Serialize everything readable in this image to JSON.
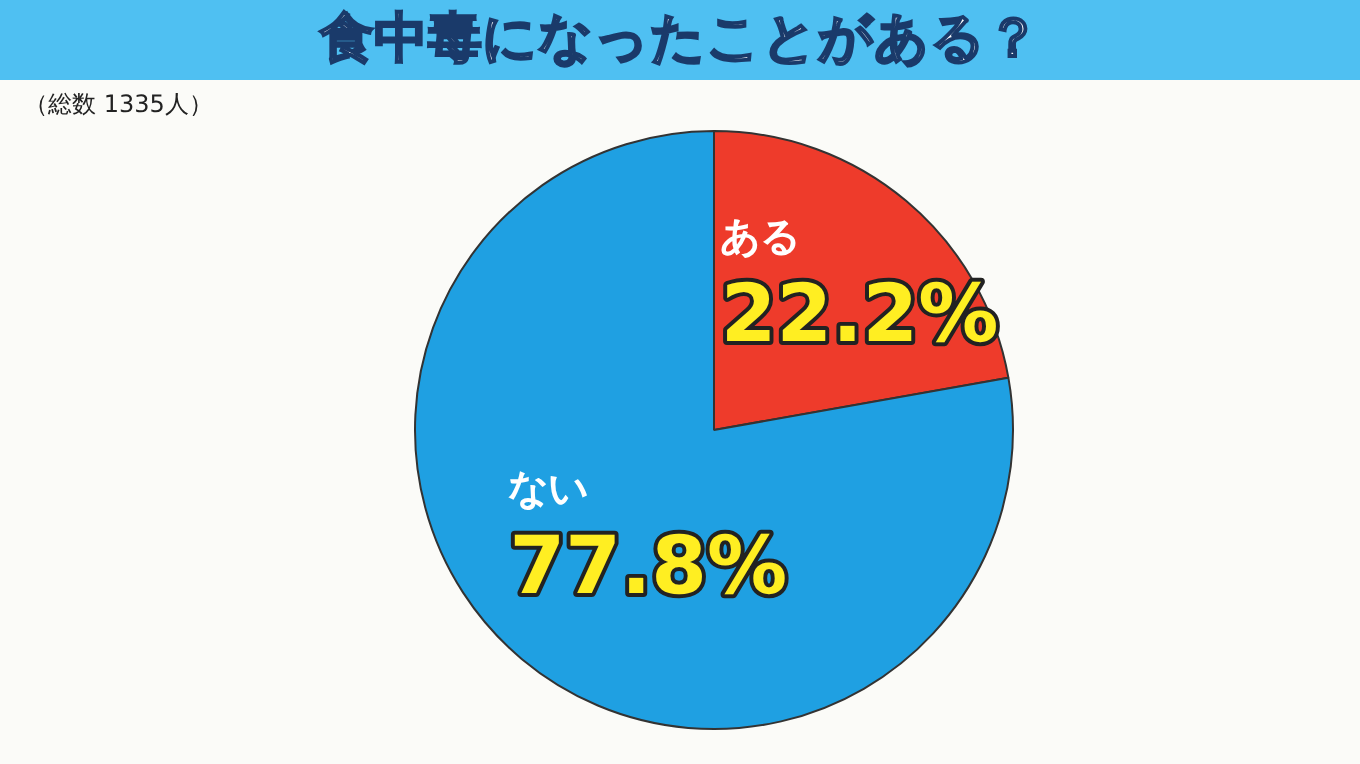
{
  "chart_data": {
    "type": "pie",
    "title": "食中毒になったことがある？",
    "subtitle": "（総数 1335人）",
    "categories": [
      "ある",
      "ない"
    ],
    "values": [
      22.2,
      77.8
    ],
    "colors": [
      "#ee3b2b",
      "#1fa0e2"
    ],
    "value_labels": [
      "22.2%",
      "77.8%"
    ],
    "legend": false
  }
}
